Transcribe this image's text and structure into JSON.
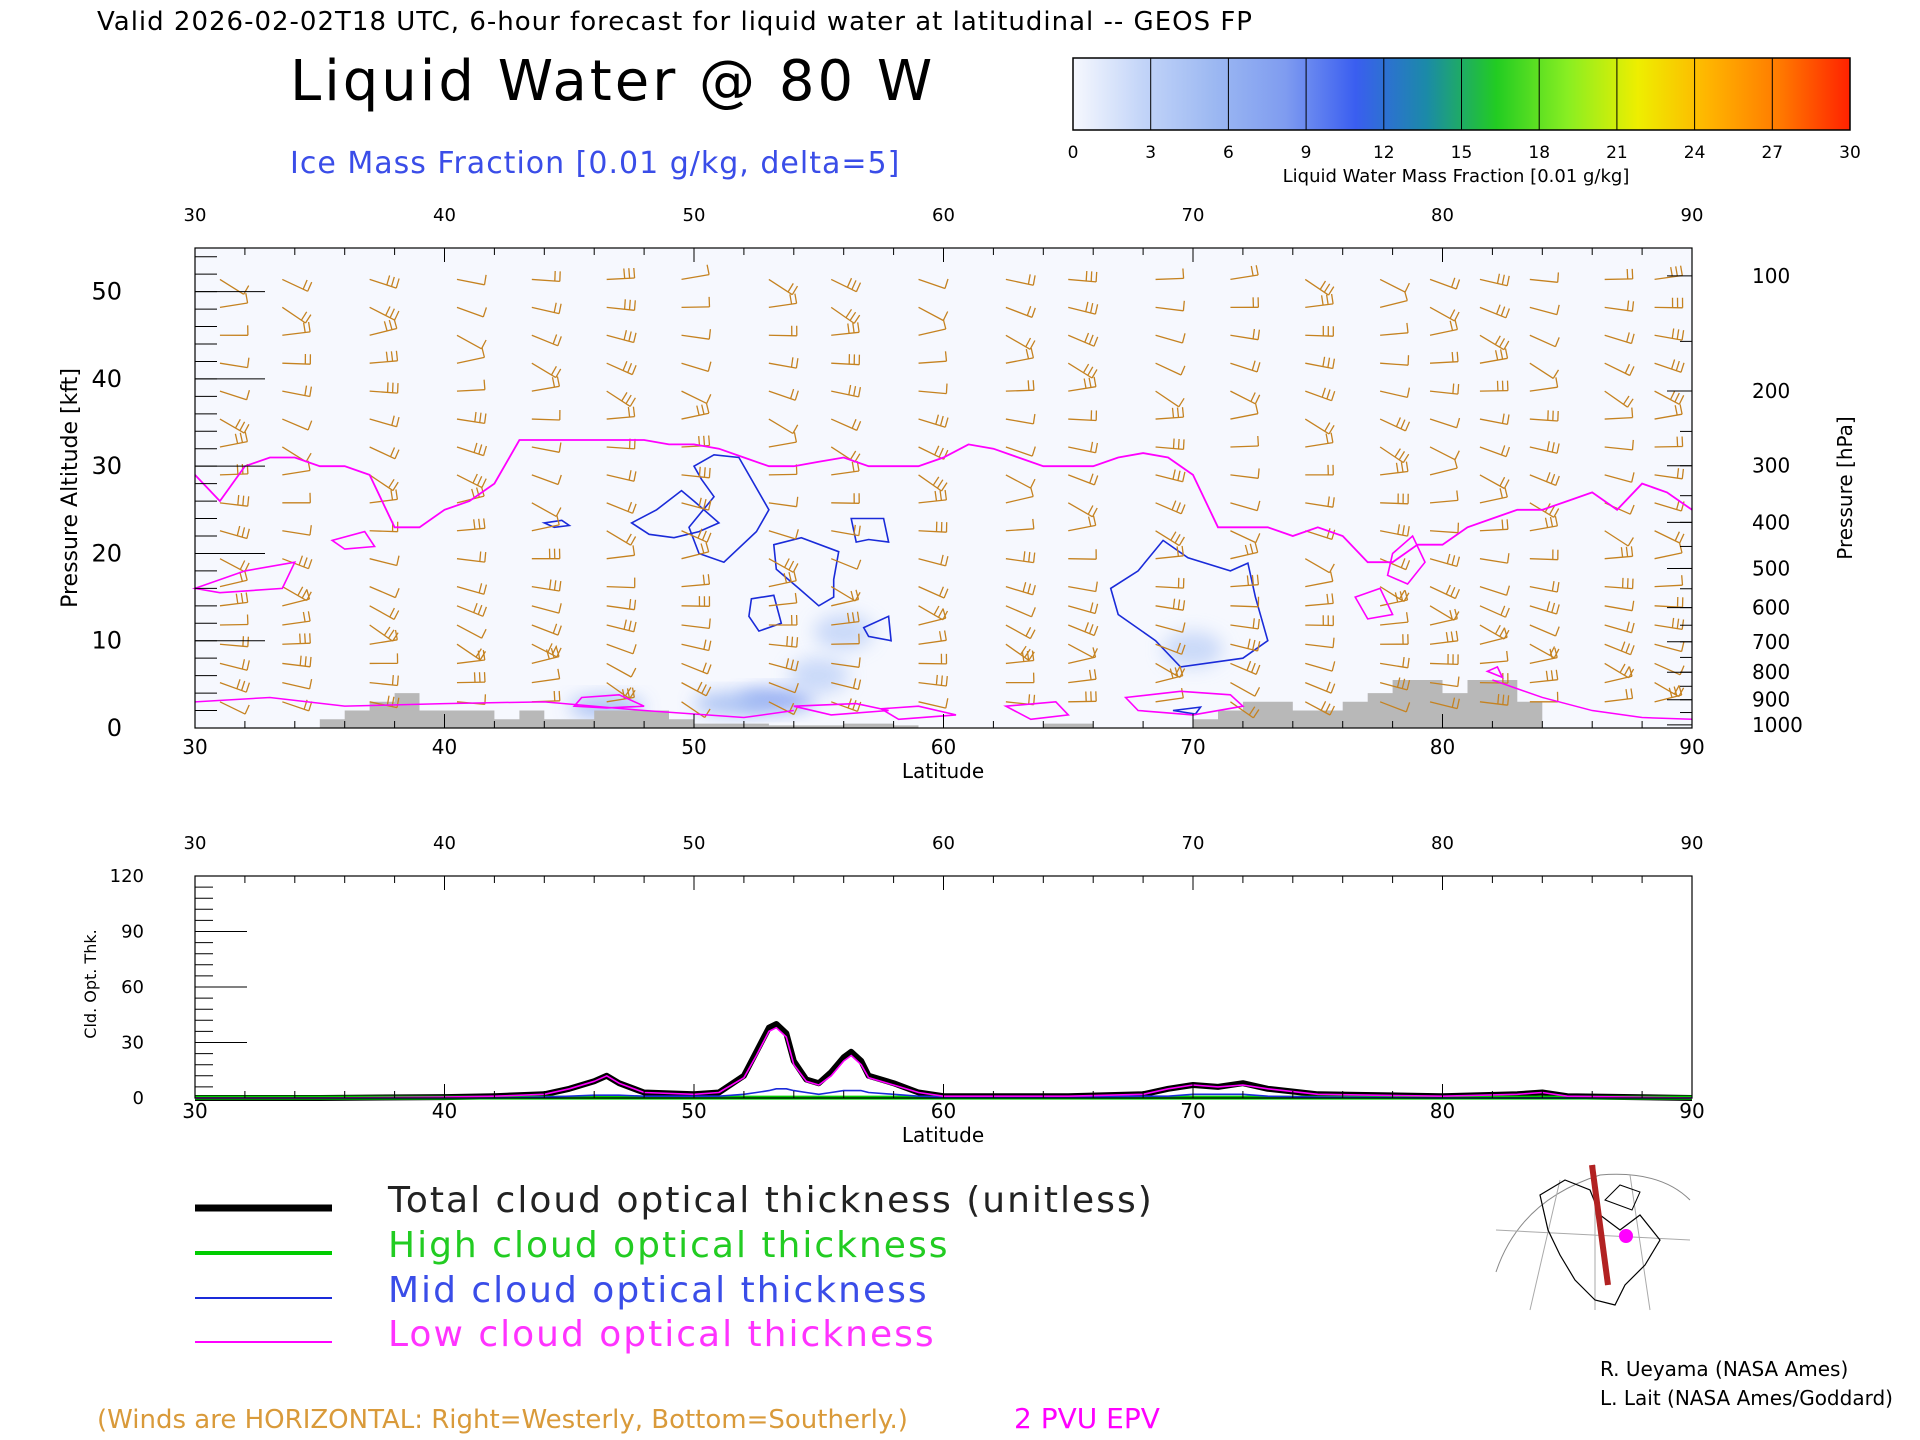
{
  "header": {
    "line": "Valid 2026-02-02T18 UTC, 6-hour forecast for liquid water at latitudinal -- GEOS FP",
    "title": "Liquid Water @ 80 W",
    "ice_label": "Ice Mass Fraction [0.01 g/kg, delta=5]"
  },
  "colorbar": {
    "ticks": [
      "0",
      "3",
      "6",
      "9",
      "12",
      "15",
      "18",
      "21",
      "24",
      "27",
      "30"
    ],
    "label": "Liquid Water Mass Fraction [0.01 g/kg]",
    "colors": [
      "#f6f8fe",
      "#c2d4f8",
      "#9cb8f2",
      "#7f9cf0",
      "#3a5ef0",
      "#1b8aa8",
      "#22cc22",
      "#88ee22",
      "#eeee00",
      "#ffb400",
      "#ff7a00",
      "#ff2200"
    ]
  },
  "colors": {
    "wind": "#c58220",
    "tropopause": "#ff00ff",
    "ice": "#1a2bd9",
    "terrain": "#b8b8b8",
    "total": "#000000",
    "high": "#00cc00",
    "mid": "#1a2bd9",
    "low": "#ff00ff"
  },
  "chart_data": [
    {
      "type": "area",
      "name": "cross-section",
      "xlabel": "Latitude",
      "ylabel": "Pressure Altitude [kft]",
      "ylabel_right": "Pressure [hPa]",
      "xlim": [
        30,
        90
      ],
      "ylim": [
        0,
        55
      ],
      "x_ticks": [
        "30",
        "40",
        "50",
        "60",
        "70",
        "80",
        "90"
      ],
      "y_ticks": [
        "0",
        "10",
        "20",
        "30",
        "40",
        "50"
      ],
      "pressure_ticks": [
        "100",
        "200",
        "300",
        "400",
        "500",
        "600",
        "700",
        "800",
        "900",
        "1000"
      ],
      "epv_2pvu_kft": {
        "x": [
          30,
          31,
          32,
          33,
          34,
          35,
          36,
          37,
          38,
          39,
          40,
          41,
          42,
          43,
          44,
          45,
          46,
          47,
          48,
          49,
          50,
          51,
          52,
          53,
          54,
          55,
          56,
          57,
          58,
          59,
          60,
          61,
          62,
          63,
          64,
          65,
          66,
          67,
          68,
          69,
          70,
          71,
          72,
          73,
          74,
          75,
          76,
          77,
          78,
          79,
          80,
          81,
          82,
          83,
          84,
          85,
          86,
          87,
          88,
          89,
          90
        ],
        "y": [
          29,
          26,
          30,
          31,
          31,
          30,
          30,
          29,
          23,
          23,
          25,
          26,
          28,
          33,
          33,
          33,
          33,
          33,
          33,
          32.5,
          32.5,
          32,
          31,
          30,
          30,
          30.5,
          31,
          30,
          30,
          30,
          31,
          32.5,
          32,
          31,
          30,
          30,
          30,
          31,
          31.5,
          31,
          29,
          23,
          23,
          23,
          22,
          23,
          22,
          19,
          19,
          21,
          21,
          23,
          24,
          25,
          25,
          26,
          27,
          25,
          28,
          27,
          25
        ]
      },
      "terrain_kft": {
        "x": [
          30,
          33,
          35,
          36,
          37,
          38,
          39,
          40,
          41,
          42,
          43,
          44,
          45,
          46,
          47,
          48,
          49,
          50,
          51,
          52,
          53,
          54,
          55,
          56,
          57,
          58,
          59,
          60,
          61,
          62,
          63,
          64,
          65,
          66,
          67,
          68,
          69,
          70,
          71,
          72,
          73,
          74,
          75,
          76,
          77,
          78,
          79,
          80,
          81,
          82,
          83,
          84,
          90
        ],
        "y": [
          0,
          0,
          1,
          2,
          3,
          4,
          2,
          2,
          2,
          1,
          2,
          1,
          1,
          2,
          2,
          2,
          1,
          0.5,
          0.5,
          0.5,
          0.3,
          0.3,
          0.3,
          0.5,
          0.5,
          0.3,
          0,
          0,
          0,
          0,
          0,
          0.5,
          0.5,
          0,
          0,
          0,
          0,
          1,
          2,
          3,
          3,
          2,
          2,
          3,
          4,
          5.5,
          5.5,
          4,
          5.5,
          5.5,
          3,
          0,
          0
        ]
      },
      "liquid_water_blobs": [
        {
          "lat": 53.3,
          "kft": 3.2,
          "value": 9
        },
        {
          "lat": 51.5,
          "kft": 2.8,
          "value": 6
        },
        {
          "lat": 46.5,
          "kft": 2.4,
          "value": 6
        },
        {
          "lat": 55.0,
          "kft": 6.0,
          "value": 3
        },
        {
          "lat": 56.0,
          "kft": 11.0,
          "value": 3
        },
        {
          "lat": 70.0,
          "kft": 9.0,
          "value": 3
        }
      ],
      "wind_columns_lat": [
        31,
        33.5,
        37,
        40.5,
        43.5,
        46.5,
        49.5,
        53,
        55.5,
        59,
        62.5,
        65,
        68.5,
        71.5,
        74.5,
        77.5,
        79.5,
        81.5,
        83.5,
        86.5,
        88.5
      ]
    },
    {
      "type": "line",
      "name": "cloud-optical-thickness",
      "xlabel": "Latitude",
      "ylabel": "Cld. Opt. Thk.",
      "xlim": [
        30,
        90
      ],
      "ylim": [
        0,
        120
      ],
      "x_ticks": [
        "30",
        "40",
        "50",
        "60",
        "70",
        "80",
        "90"
      ],
      "y_ticks": [
        "0",
        "30",
        "60",
        "90",
        "120"
      ],
      "x": [
        30,
        35,
        40,
        42,
        44,
        45,
        46,
        46.5,
        47,
        48,
        50,
        51,
        52,
        52.5,
        53,
        53.3,
        53.7,
        54,
        54.5,
        55,
        55.5,
        56,
        56.3,
        56.7,
        57,
        58,
        59,
        60,
        65,
        68,
        69,
        70,
        71,
        72,
        73,
        75,
        80,
        83,
        84,
        85,
        90
      ],
      "series": [
        {
          "name": "Total cloud optical thickness (unitless)",
          "values": [
            0,
            0,
            0.5,
            1,
            2,
            5,
            9,
            12,
            8,
            3,
            2,
            3,
            12,
            25,
            38,
            40,
            35,
            20,
            10,
            8,
            14,
            22,
            25,
            20,
            12,
            8,
            3,
            1,
            1,
            2,
            5,
            7,
            6,
            8,
            5,
            2,
            1,
            2,
            3,
            1,
            0
          ]
        },
        {
          "name": "High cloud optical thickness",
          "values": [
            0.2,
            0.2,
            0.2,
            0.2,
            0.2,
            0.2,
            0.2,
            0.2,
            0.2,
            0.2,
            0.2,
            0.2,
            0.2,
            0.2,
            0.2,
            0.2,
            0.2,
            0.2,
            0.2,
            0.2,
            0.2,
            0.2,
            0.2,
            0.2,
            0.2,
            0.2,
            0.2,
            0.2,
            0.2,
            0.2,
            0.2,
            0.2,
            0.2,
            0.2,
            0.2,
            0.2,
            0.2,
            0.2,
            0.2,
            0.2,
            0.2
          ]
        },
        {
          "name": "Mid cloud optical thickness",
          "values": [
            0,
            0,
            0,
            0,
            0.5,
            1,
            1.5,
            1.5,
            1.5,
            1,
            1,
            1,
            2,
            3,
            4,
            5,
            5,
            4,
            3,
            2,
            3,
            4,
            4,
            4,
            3,
            2,
            1,
            0.5,
            0.5,
            1,
            1,
            2,
            2,
            2,
            1,
            0.5,
            0,
            0,
            0,
            0,
            0
          ]
        },
        {
          "name": "Low cloud optical thickness",
          "values": [
            0,
            0,
            0.5,
            1,
            2,
            5,
            9,
            12,
            8,
            3,
            2,
            3,
            11,
            23,
            36,
            38,
            33,
            18,
            9,
            7,
            12,
            20,
            23,
            18,
            11,
            7,
            3,
            1,
            1,
            2,
            5,
            7,
            6,
            7,
            5,
            2,
            1,
            2,
            3,
            1,
            0
          ]
        }
      ]
    }
  ],
  "legend": {
    "total": "Total cloud optical thickness (unitless)",
    "high": "High cloud optical thickness",
    "mid": "Mid cloud optical thickness",
    "low": "Low cloud optical thickness"
  },
  "footer": {
    "winds": "(Winds are HORIZONTAL: Right=Westerly, Bottom=Southerly.)",
    "epv": "2 PVU EPV",
    "credit1": "R. Ueyama (NASA Ames)",
    "credit2": "L. Lait (NASA Ames/Goddard)"
  }
}
